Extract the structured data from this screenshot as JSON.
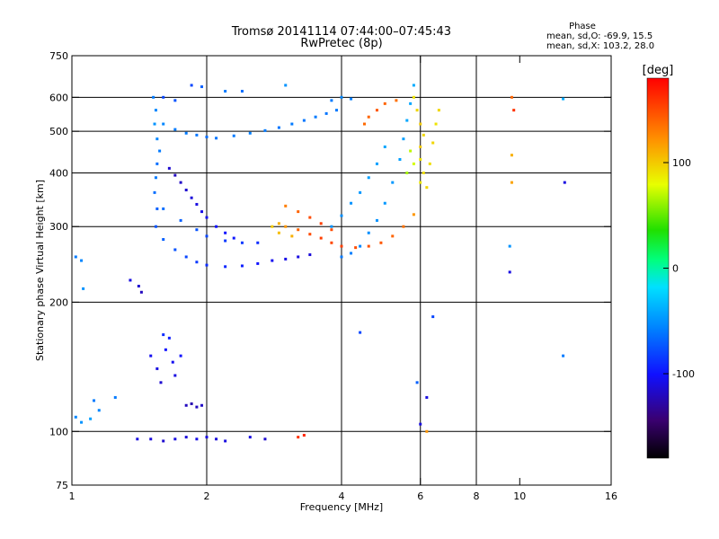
{
  "title_line1": "Tromsø 20141114 07:44:00–07:45:43",
  "title_line2": "RwPretec (8p)",
  "phase_info": {
    "heading": "Phase",
    "line_o": "mean, sd,O: -69.9, 15.5",
    "line_x": "mean, sd,X: 103.2, 28.0"
  },
  "colorbar": {
    "label": "[deg]",
    "range": [
      -180,
      180
    ],
    "ticks": [
      100,
      0,
      -100
    ],
    "tick_labels": [
      "100",
      "0",
      "-100"
    ]
  },
  "chart_data": {
    "type": "scatter",
    "title": "Tromsø 20141114 07:44:00–07:45:43",
    "subtitle": "RwPretec (8p)",
    "xlabel": "Frequency [MHz]",
    "ylabel": "Stationary phase Virtual Height [km]",
    "xscale": "log",
    "yscale": "log",
    "xlim": [
      1,
      16
    ],
    "ylim": [
      75,
      750
    ],
    "x_ticks": [
      1,
      2,
      4,
      6,
      8,
      10,
      16
    ],
    "x_tick_labels": [
      "1",
      "2",
      "4",
      "6",
      "8",
      "10",
      "16"
    ],
    "x_gridlines": [
      2,
      4,
      6,
      8
    ],
    "y_ticks": [
      75,
      100,
      200,
      300,
      400,
      500,
      600,
      750
    ],
    "y_tick_labels": [
      "75",
      "100",
      "200",
      "300",
      "400",
      "500",
      "600",
      "750"
    ],
    "y_gridlines": [
      100,
      200,
      300,
      400,
      500,
      600
    ],
    "color_variable": "phase [deg]",
    "grid": true,
    "series": [
      {
        "name": "O",
        "points": [
          [
            1.02,
            255,
            -60
          ],
          [
            1.05,
            250,
            -55
          ],
          [
            1.06,
            215,
            -50
          ],
          [
            1.35,
            225,
            -110
          ],
          [
            1.41,
            218,
            -115
          ],
          [
            1.43,
            211,
            -120
          ],
          [
            1.02,
            108,
            -55
          ],
          [
            1.05,
            105,
            -50
          ],
          [
            1.1,
            107,
            -45
          ],
          [
            1.12,
            118,
            -60
          ],
          [
            1.15,
            112,
            -55
          ],
          [
            1.25,
            120,
            -60
          ],
          [
            1.5,
            150,
            -105
          ],
          [
            1.55,
            140,
            -110
          ],
          [
            1.58,
            130,
            -115
          ],
          [
            1.62,
            155,
            -100
          ],
          [
            1.65,
            165,
            -95
          ],
          [
            1.68,
            145,
            -105
          ],
          [
            1.6,
            168,
            -90
          ],
          [
            1.7,
            135,
            -110
          ],
          [
            1.75,
            150,
            -100
          ],
          [
            1.8,
            115,
            -120
          ],
          [
            1.85,
            116,
            -125
          ],
          [
            1.9,
            114,
            -120
          ],
          [
            1.95,
            115,
            -118
          ],
          [
            1.4,
            96,
            -110
          ],
          [
            1.5,
            96,
            -112
          ],
          [
            1.6,
            95,
            -115
          ],
          [
            1.7,
            96,
            -110
          ],
          [
            1.8,
            97,
            -112
          ],
          [
            1.9,
            96,
            -108
          ],
          [
            2.0,
            97,
            -110
          ],
          [
            2.1,
            96,
            -112
          ],
          [
            2.2,
            95,
            -110
          ],
          [
            2.5,
            97,
            -110
          ],
          [
            2.7,
            96,
            -115
          ],
          [
            1.52,
            600,
            -60
          ],
          [
            1.54,
            560,
            -55
          ],
          [
            1.53,
            520,
            -50
          ],
          [
            1.55,
            480,
            -55
          ],
          [
            1.57,
            450,
            -60
          ],
          [
            1.55,
            420,
            -65
          ],
          [
            1.54,
            390,
            -60
          ],
          [
            1.53,
            360,
            -65
          ],
          [
            1.55,
            330,
            -70
          ],
          [
            1.54,
            300,
            -75
          ],
          [
            1.6,
            280,
            -70
          ],
          [
            1.7,
            265,
            -75
          ],
          [
            1.8,
            255,
            -80
          ],
          [
            1.9,
            248,
            -85
          ],
          [
            2.0,
            244,
            -90
          ],
          [
            2.2,
            242,
            -92
          ],
          [
            2.4,
            243,
            -95
          ],
          [
            2.6,
            246,
            -100
          ],
          [
            2.8,
            250,
            -105
          ],
          [
            3.0,
            252,
            -108
          ],
          [
            3.2,
            255,
            -110
          ],
          [
            3.4,
            258,
            -112
          ],
          [
            1.6,
            330,
            -65
          ],
          [
            1.75,
            310,
            -70
          ],
          [
            1.9,
            295,
            -75
          ],
          [
            2.0,
            285,
            -80
          ],
          [
            2.2,
            278,
            -85
          ],
          [
            2.4,
            275,
            -85
          ],
          [
            2.6,
            275,
            -90
          ],
          [
            1.6,
            520,
            -55
          ],
          [
            1.7,
            505,
            -60
          ],
          [
            1.8,
            495,
            -60
          ],
          [
            1.9,
            490,
            -62
          ],
          [
            2.0,
            485,
            -65
          ],
          [
            2.1,
            482,
            -62
          ],
          [
            2.3,
            488,
            -60
          ],
          [
            2.5,
            495,
            -58
          ],
          [
            2.7,
            502,
            -60
          ],
          [
            2.9,
            510,
            -62
          ],
          [
            3.1,
            520,
            -60
          ],
          [
            3.3,
            530,
            -62
          ],
          [
            3.5,
            540,
            -60
          ],
          [
            3.7,
            550,
            -62
          ],
          [
            3.9,
            560,
            -60
          ],
          [
            1.65,
            410,
            -115
          ],
          [
            1.7,
            395,
            -120
          ],
          [
            1.75,
            380,
            -118
          ],
          [
            1.8,
            365,
            -115
          ],
          [
            1.85,
            350,
            -112
          ],
          [
            1.9,
            338,
            -110
          ],
          [
            1.95,
            325,
            -108
          ],
          [
            2.0,
            315,
            -105
          ],
          [
            2.1,
            300,
            -100
          ],
          [
            2.2,
            290,
            -100
          ],
          [
            2.3,
            282,
            -98
          ],
          [
            1.6,
            600,
            -80
          ],
          [
            1.7,
            590,
            -75
          ],
          [
            1.85,
            640,
            -80
          ],
          [
            1.95,
            635,
            -70
          ],
          [
            2.2,
            620,
            -60
          ],
          [
            2.4,
            620,
            -65
          ],
          [
            3.0,
            640,
            -50
          ],
          [
            4.0,
            255,
            -60
          ],
          [
            4.2,
            260,
            -58
          ],
          [
            4.4,
            270,
            -55
          ],
          [
            4.6,
            290,
            -52
          ],
          [
            4.8,
            310,
            -50
          ],
          [
            5.0,
            340,
            -48
          ],
          [
            5.2,
            380,
            -48
          ],
          [
            5.4,
            430,
            -45
          ],
          [
            5.5,
            480,
            -45
          ],
          [
            5.6,
            530,
            -42
          ],
          [
            5.7,
            580,
            -42
          ],
          [
            5.8,
            640,
            -40
          ],
          [
            3.8,
            300,
            -50
          ],
          [
            4.0,
            318,
            -52
          ],
          [
            4.2,
            340,
            -50
          ],
          [
            4.4,
            360,
            -48
          ],
          [
            4.6,
            390,
            -45
          ],
          [
            4.8,
            420,
            -45
          ],
          [
            5.0,
            460,
            -42
          ],
          [
            3.8,
            590,
            -60
          ],
          [
            4.0,
            600,
            -55
          ],
          [
            4.2,
            595,
            -58
          ],
          [
            12.5,
            595,
            -40
          ],
          [
            9.5,
            270,
            -50
          ],
          [
            9.5,
            235,
            -110
          ],
          [
            12.6,
            380,
            -110
          ],
          [
            12.5,
            150,
            -60
          ],
          [
            6.4,
            185,
            -80
          ],
          [
            6.2,
            120,
            -110
          ],
          [
            4.4,
            170,
            -80
          ],
          [
            6.0,
            104,
            -110
          ],
          [
            5.9,
            130,
            -70
          ]
        ]
      },
      {
        "name": "X",
        "points": [
          [
            2.9,
            305,
            110
          ],
          [
            3.0,
            300,
            120
          ],
          [
            3.2,
            295,
            140
          ],
          [
            3.4,
            288,
            150
          ],
          [
            3.6,
            282,
            155
          ],
          [
            3.8,
            275,
            152
          ],
          [
            4.0,
            270,
            155
          ],
          [
            4.3,
            268,
            150
          ],
          [
            4.6,
            270,
            148
          ],
          [
            4.9,
            275,
            145
          ],
          [
            5.2,
            285,
            140
          ],
          [
            5.5,
            300,
            135
          ],
          [
            5.8,
            320,
            120
          ],
          [
            3.0,
            335,
            130
          ],
          [
            3.2,
            325,
            140
          ],
          [
            3.4,
            315,
            150
          ],
          [
            3.6,
            305,
            155
          ],
          [
            3.8,
            295,
            150
          ],
          [
            2.8,
            300,
            100
          ],
          [
            2.9,
            290,
            105
          ],
          [
            3.1,
            285,
            110
          ],
          [
            4.6,
            540,
            140
          ],
          [
            4.8,
            560,
            145
          ],
          [
            5.0,
            580,
            140
          ],
          [
            5.3,
            590,
            135
          ],
          [
            4.5,
            520,
            138
          ],
          [
            5.8,
            600,
            90
          ],
          [
            5.9,
            560,
            95
          ],
          [
            6.0,
            520,
            100
          ],
          [
            6.1,
            490,
            95
          ],
          [
            6.0,
            460,
            100
          ],
          [
            6.0,
            430,
            90
          ],
          [
            6.1,
            400,
            92
          ],
          [
            6.0,
            380,
            88
          ],
          [
            6.2,
            370,
            95
          ],
          [
            6.3,
            420,
            92
          ],
          [
            6.4,
            470,
            95
          ],
          [
            6.5,
            520,
            90
          ],
          [
            6.6,
            560,
            95
          ],
          [
            5.7,
            450,
            70
          ],
          [
            5.8,
            420,
            75
          ],
          [
            5.6,
            400,
            65
          ],
          [
            3.2,
            97,
            160
          ],
          [
            3.3,
            98,
            165
          ],
          [
            6.2,
            100,
            120
          ],
          [
            9.6,
            440,
            110
          ],
          [
            9.6,
            380,
            115
          ],
          [
            9.7,
            560,
            160
          ],
          [
            9.6,
            600,
            140
          ]
        ]
      }
    ]
  }
}
